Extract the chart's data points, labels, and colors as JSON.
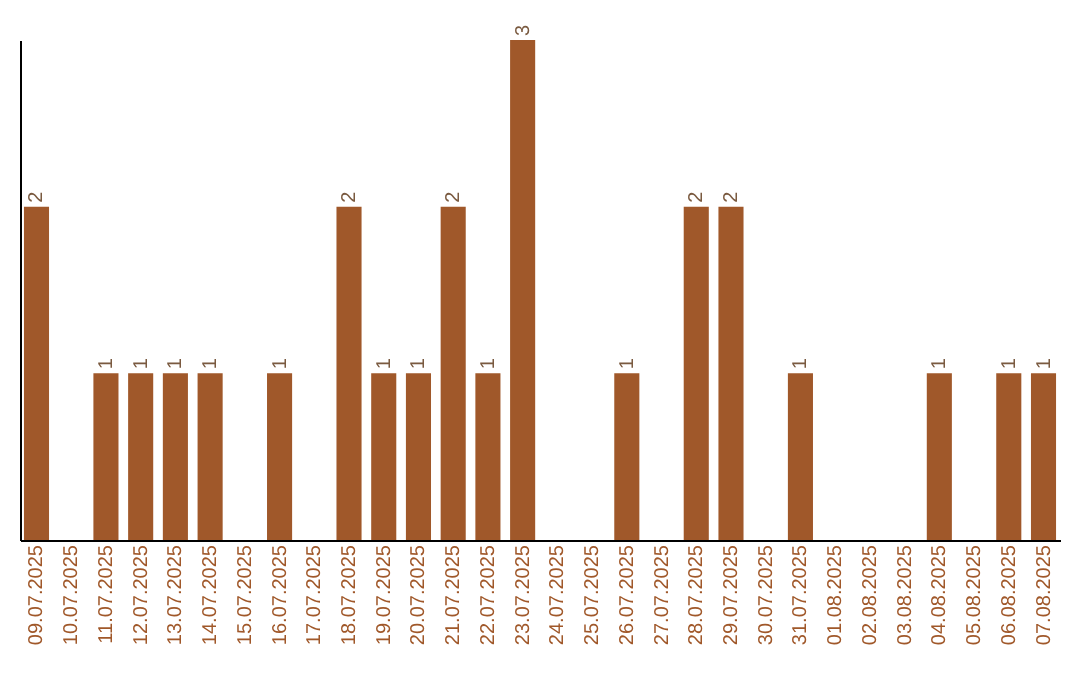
{
  "chart_data": {
    "type": "bar",
    "categories": [
      "09.07.2025",
      "10.07.2025",
      "11.07.2025",
      "12.07.2025",
      "13.07.2025",
      "14.07.2025",
      "15.07.2025",
      "16.07.2025",
      "17.07.2025",
      "18.07.2025",
      "19.07.2025",
      "20.07.2025",
      "21.07.2025",
      "22.07.2025",
      "23.07.2025",
      "24.07.2025",
      "25.07.2025",
      "26.07.2025",
      "27.07.2025",
      "28.07.2025",
      "29.07.2025",
      "30.07.2025",
      "31.07.2025",
      "01.08.2025",
      "02.08.2025",
      "03.08.2025",
      "04.08.2025",
      "05.08.2025",
      "06.08.2025",
      "07.08.2025"
    ],
    "values": [
      2,
      0,
      1,
      1,
      1,
      1,
      0,
      1,
      0,
      2,
      1,
      1,
      2,
      1,
      3,
      0,
      0,
      1,
      0,
      2,
      2,
      0,
      1,
      0,
      0,
      0,
      1,
      0,
      1,
      1
    ],
    "value_labels": [
      "2",
      null,
      "1",
      "1",
      "1",
      "1",
      null,
      "1",
      null,
      "2",
      "1",
      "1",
      "2",
      "1",
      "3",
      null,
      null,
      "1",
      null,
      "2",
      "2",
      null,
      "1",
      null,
      null,
      null,
      "1",
      null,
      "1",
      "1"
    ],
    "color": "#a0582a",
    "tick_labels": "x"
  }
}
